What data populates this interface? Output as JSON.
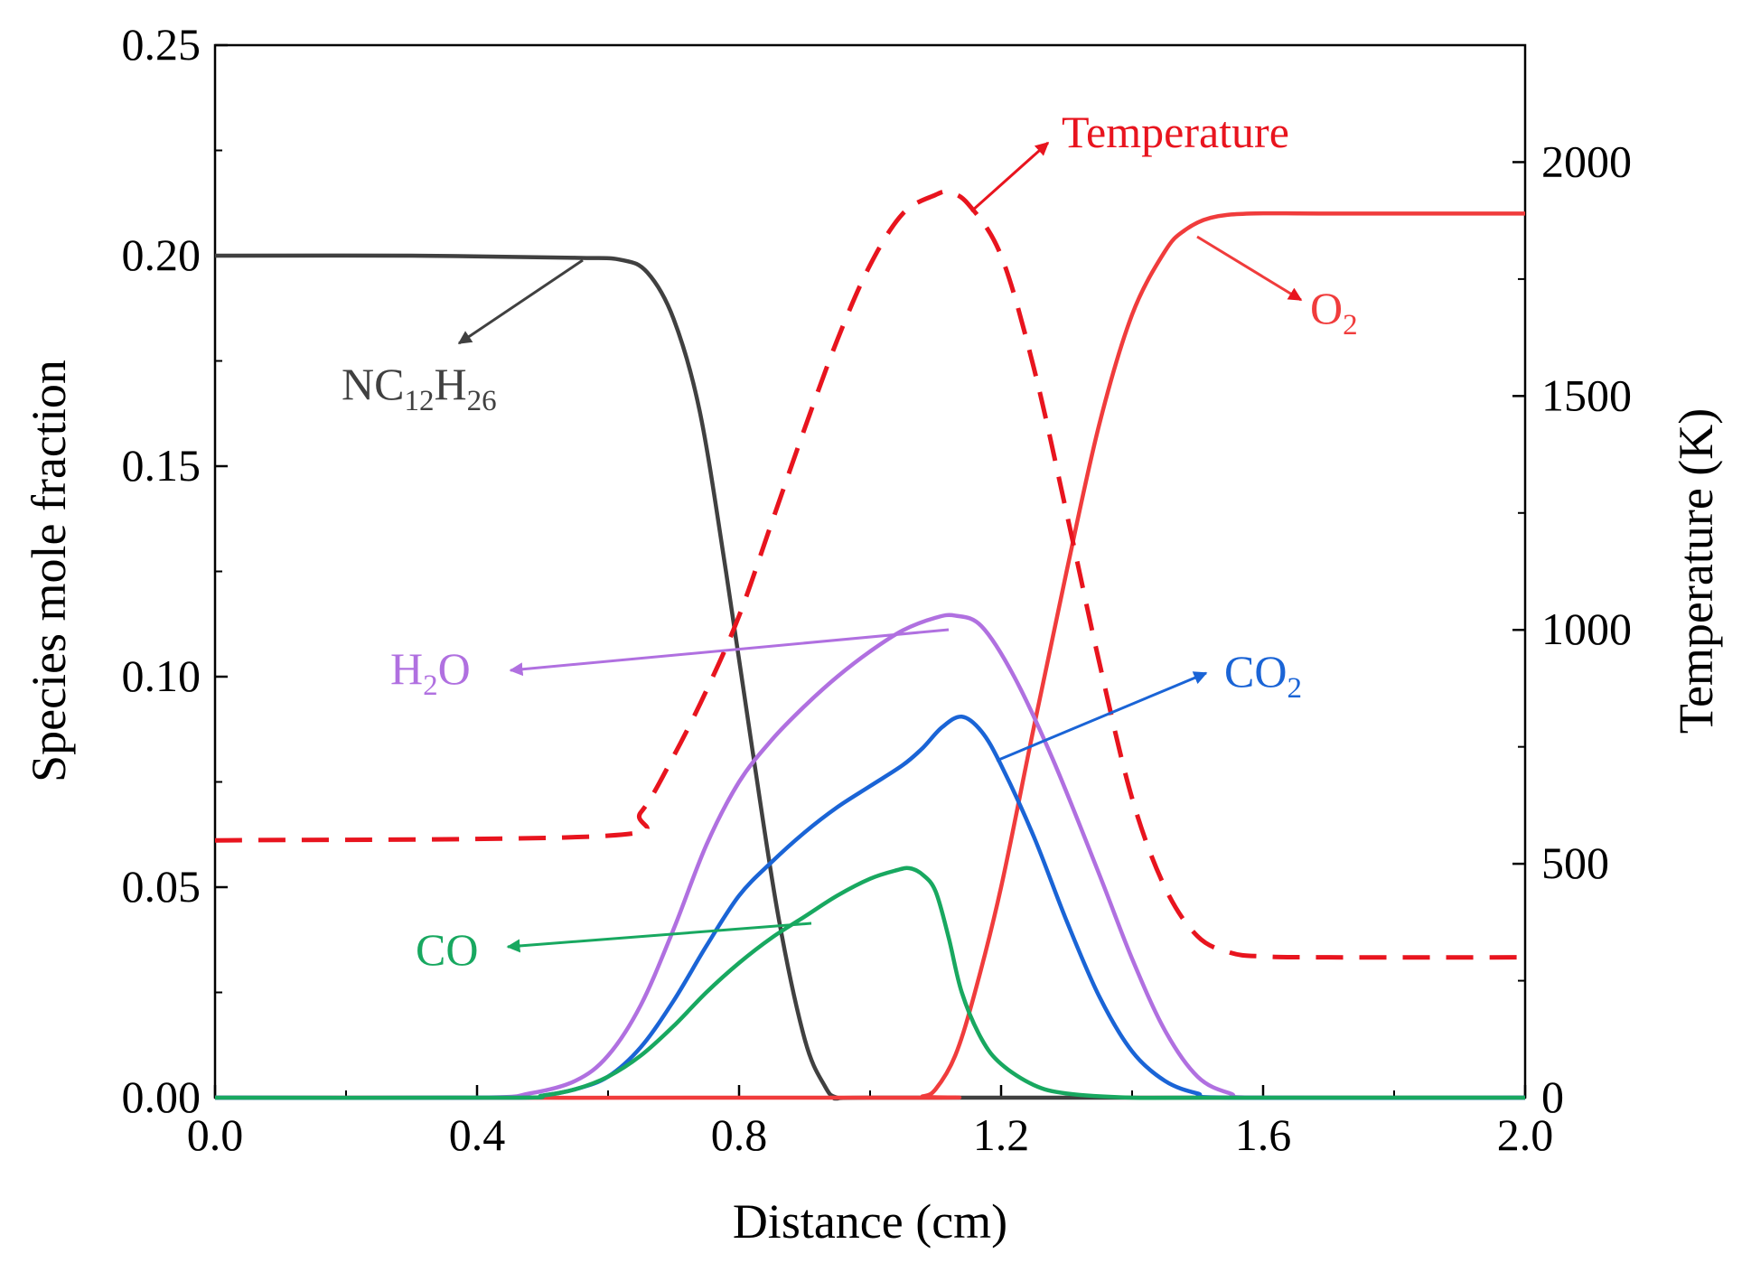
{
  "chart_data": {
    "type": "line",
    "xlabel": "Distance (cm)",
    "ylabel": "Species mole fraction",
    "y2label": "Temperature (K)",
    "xlim": [
      0.0,
      2.0
    ],
    "ylim": [
      0.0,
      0.25
    ],
    "y2lim": [
      0,
      2250
    ],
    "x_ticks": [
      "0.0",
      "0.4",
      "0.8",
      "1.2",
      "1.6",
      "2.0"
    ],
    "y_ticks": [
      "0.00",
      "0.05",
      "0.10",
      "0.15",
      "0.20",
      "0.25"
    ],
    "y2_ticks": [
      "0",
      "500",
      "1000",
      "1500",
      "2000"
    ],
    "grid": false,
    "colors": {
      "NC12H26": "#404040",
      "O2": "#f03c3c",
      "H2O": "#b070e0",
      "CO2": "#1a64d6",
      "CO": "#18a860",
      "Temperature": "#e8141e"
    },
    "series": [
      {
        "name": "NC12H26",
        "axis": "left",
        "x": [
          0.0,
          0.3,
          0.55,
          0.62,
          0.66,
          0.7,
          0.74,
          0.78,
          0.82,
          0.86,
          0.9,
          0.93,
          0.95,
          1.0,
          1.5,
          2.0
        ],
        "y": [
          0.2,
          0.2,
          0.1995,
          0.199,
          0.196,
          0.185,
          0.163,
          0.125,
          0.083,
          0.043,
          0.014,
          0.003,
          0.0,
          0.0,
          0.0,
          0.0
        ]
      },
      {
        "name": "O2",
        "axis": "left",
        "x": [
          0.0,
          1.05,
          1.08,
          1.1,
          1.13,
          1.16,
          1.2,
          1.25,
          1.3,
          1.35,
          1.4,
          1.45,
          1.48,
          1.52,
          1.58,
          1.7,
          2.0
        ],
        "y": [
          0.0,
          0.0,
          0.0003,
          0.002,
          0.01,
          0.025,
          0.05,
          0.088,
          0.125,
          0.16,
          0.186,
          0.201,
          0.206,
          0.209,
          0.21,
          0.21,
          0.21
        ]
      },
      {
        "name": "H2O",
        "axis": "left",
        "x": [
          0.0,
          0.4,
          0.48,
          0.55,
          0.6,
          0.65,
          0.7,
          0.75,
          0.8,
          0.85,
          0.9,
          0.95,
          1.0,
          1.05,
          1.1,
          1.13,
          1.17,
          1.22,
          1.28,
          1.35,
          1.4,
          1.45,
          1.5,
          1.55,
          1.6,
          2.0
        ],
        "y": [
          0.0,
          0.0,
          0.001,
          0.004,
          0.01,
          0.022,
          0.04,
          0.06,
          0.075,
          0.085,
          0.093,
          0.1,
          0.106,
          0.111,
          0.114,
          0.1145,
          0.112,
          0.1,
          0.08,
          0.053,
          0.033,
          0.016,
          0.005,
          0.001,
          0.0,
          0.0
        ]
      },
      {
        "name": "CO2",
        "axis": "left",
        "x": [
          0.0,
          0.45,
          0.5,
          0.55,
          0.6,
          0.65,
          0.7,
          0.75,
          0.8,
          0.85,
          0.9,
          0.95,
          1.0,
          1.05,
          1.08,
          1.11,
          1.14,
          1.17,
          1.2,
          1.25,
          1.3,
          1.35,
          1.4,
          1.45,
          1.5,
          1.55,
          2.0
        ],
        "y": [
          0.0,
          0.0,
          0.0005,
          0.002,
          0.005,
          0.012,
          0.023,
          0.036,
          0.048,
          0.056,
          0.063,
          0.069,
          0.074,
          0.079,
          0.083,
          0.088,
          0.0905,
          0.087,
          0.079,
          0.062,
          0.042,
          0.024,
          0.011,
          0.004,
          0.001,
          0.0,
          0.0
        ]
      },
      {
        "name": "CO",
        "axis": "left",
        "x": [
          0.0,
          0.45,
          0.5,
          0.55,
          0.6,
          0.65,
          0.7,
          0.75,
          0.8,
          0.85,
          0.9,
          0.95,
          1.0,
          1.04,
          1.06,
          1.08,
          1.1,
          1.12,
          1.14,
          1.17,
          1.2,
          1.25,
          1.3,
          1.4,
          1.5,
          2.0
        ],
        "y": [
          0.0,
          0.0,
          0.0005,
          0.002,
          0.005,
          0.01,
          0.017,
          0.025,
          0.032,
          0.038,
          0.043,
          0.048,
          0.052,
          0.054,
          0.0545,
          0.053,
          0.049,
          0.038,
          0.025,
          0.014,
          0.008,
          0.003,
          0.001,
          0.0,
          0.0,
          0.0
        ]
      },
      {
        "name": "Temperature",
        "axis": "right",
        "dashed": true,
        "x": [
          0.0,
          0.6,
          0.65,
          0.7,
          0.75,
          0.8,
          0.85,
          0.9,
          0.95,
          1.0,
          1.05,
          1.1,
          1.12,
          1.15,
          1.2,
          1.25,
          1.3,
          1.35,
          1.4,
          1.45,
          1.5,
          1.55,
          1.6,
          1.7,
          2.0
        ],
        "y": [
          550,
          560,
          610,
          730,
          870,
          1030,
          1230,
          1430,
          1620,
          1780,
          1890,
          1930,
          1935,
          1910,
          1800,
          1560,
          1250,
          930,
          640,
          450,
          345,
          310,
          302,
          300,
          300
        ]
      }
    ],
    "annotations": [
      {
        "label": "NC",
        "sub1": "12",
        "mid": "H",
        "sub2": "26",
        "color": "#404040"
      },
      {
        "label": "O",
        "sub1": "2",
        "color": "#f03c3c"
      },
      {
        "label": "Temperature",
        "color": "#e8141e"
      },
      {
        "label": "H",
        "sub1": "2",
        "mid": "O",
        "color": "#b070e0"
      },
      {
        "label": "CO",
        "sub1": "2",
        "color": "#1a64d6"
      },
      {
        "label": "CO",
        "color": "#18a860"
      }
    ]
  }
}
